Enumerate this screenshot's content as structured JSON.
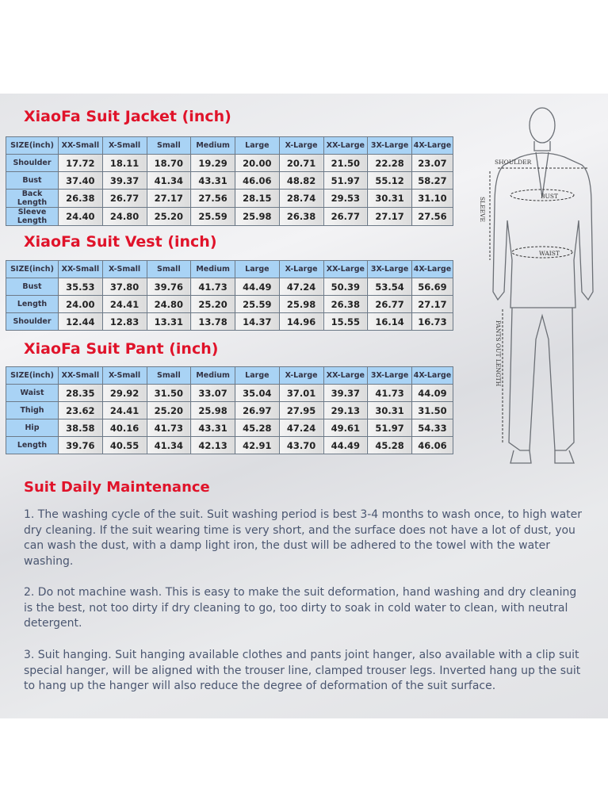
{
  "sizes": [
    "XX-Small",
    "X-Small",
    "Small",
    "Medium",
    "Large",
    "X-Large",
    "XX-Large",
    "3X-Large",
    "4X-Large"
  ],
  "header_label": "SIZE(inch)",
  "jacket": {
    "title": "XiaoFa Suit Jacket (inch)",
    "rows": [
      {
        "label": "Shoulder",
        "values": [
          "17.72",
          "18.11",
          "18.70",
          "19.29",
          "20.00",
          "20.71",
          "21.50",
          "22.28",
          "23.07"
        ]
      },
      {
        "label": "Bust",
        "values": [
          "37.40",
          "39.37",
          "41.34",
          "43.31",
          "46.06",
          "48.82",
          "51.97",
          "55.12",
          "58.27"
        ]
      },
      {
        "label": "Back Length",
        "values": [
          "26.38",
          "26.77",
          "27.17",
          "27.56",
          "28.15",
          "28.74",
          "29.53",
          "30.31",
          "31.10"
        ]
      },
      {
        "label": "Sleeve Length",
        "values": [
          "24.40",
          "24.80",
          "25.20",
          "25.59",
          "25.98",
          "26.38",
          "26.77",
          "27.17",
          "27.56"
        ]
      }
    ]
  },
  "vest": {
    "title": "XiaoFa Suit Vest (inch)",
    "rows": [
      {
        "label": "Bust",
        "values": [
          "35.53",
          "37.80",
          "39.76",
          "41.73",
          "44.49",
          "47.24",
          "50.39",
          "53.54",
          "56.69"
        ]
      },
      {
        "label": "Length",
        "values": [
          "24.00",
          "24.41",
          "24.80",
          "25.20",
          "25.59",
          "25.98",
          "26.38",
          "26.77",
          "27.17"
        ]
      },
      {
        "label": "Shoulder",
        "values": [
          "12.44",
          "12.83",
          "13.31",
          "13.78",
          "14.37",
          "14.96",
          "15.55",
          "16.14",
          "16.73"
        ]
      }
    ]
  },
  "pant": {
    "title": "XiaoFa Suit Pant (inch)",
    "rows": [
      {
        "label": "Waist",
        "values": [
          "28.35",
          "29.92",
          "31.50",
          "33.07",
          "35.04",
          "37.01",
          "39.37",
          "41.73",
          "44.09"
        ]
      },
      {
        "label": "Thigh",
        "values": [
          "23.62",
          "24.41",
          "25.20",
          "25.98",
          "26.97",
          "27.95",
          "29.13",
          "30.31",
          "31.50"
        ]
      },
      {
        "label": "Hip",
        "values": [
          "38.58",
          "40.16",
          "41.73",
          "43.31",
          "45.28",
          "47.24",
          "49.61",
          "51.97",
          "54.33"
        ]
      },
      {
        "label": "Length",
        "values": [
          "39.76",
          "40.55",
          "41.34",
          "42.13",
          "42.91",
          "43.70",
          "44.49",
          "45.28",
          "46.06"
        ]
      }
    ]
  },
  "figure": {
    "shoulder": "SHOULDER",
    "bust": "BUST",
    "waist": "WAIST",
    "sleeve": "SLEEVE",
    "pants": "PANTS OUT LENGTH"
  },
  "maintenance": {
    "title": "Suit Daily Maintenance",
    "paragraphs": [
      "1. The washing cycle of the suit. Suit washing period is best 3-4 months to wash once, to high water dry cleaning. If the suit wearing time is very short, and the surface does not have a lot of dust, you can wash the dust, with a damp light iron, the dust will be adhered to the towel with the water washing.",
      "2. Do not machine wash. This is easy to make the suit deformation, hand washing and dry cleaning is the best, not too dirty if dry cleaning to go, too dirty to soak in cold water to clean, with neutral detergent.",
      "3. Suit hanging. Suit hanging available clothes and pants joint hanger, also available with a clip suit special hanger, will be aligned with the trouser line, clamped trouser legs. Inverted hang up the suit to hang up the hanger will also reduce the degree of deformation of the suit surface."
    ]
  }
}
